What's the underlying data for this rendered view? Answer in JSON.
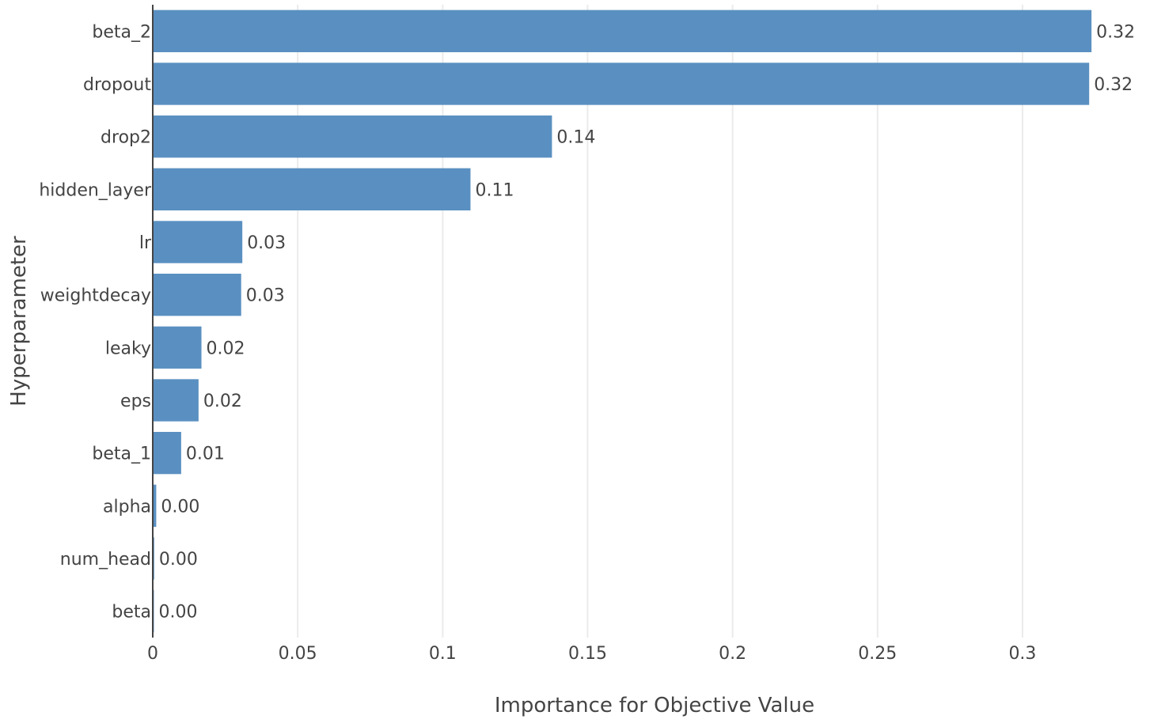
{
  "chart_data": {
    "type": "bar",
    "orientation": "horizontal",
    "xlabel": "Importance for Objective Value",
    "ylabel": "Hyperparameter",
    "xlim": [
      0,
      0.3325
    ],
    "xticks": [
      0,
      0.05,
      0.1,
      0.15,
      0.2,
      0.25,
      0.3
    ],
    "xtick_labels": [
      "0",
      "0.05",
      "0.1",
      "0.15",
      "0.2",
      "0.25",
      "0.3"
    ],
    "grid": true,
    "bar_color": "#5a90c1",
    "categories": [
      "beta_2",
      "dropout",
      "drop2",
      "hidden_layer",
      "lr",
      "weightdecay",
      "leaky",
      "eps",
      "beta_1",
      "alpha",
      "num_head",
      "beta"
    ],
    "values": [
      0.3238,
      0.323,
      0.1377,
      0.1096,
      0.0309,
      0.0305,
      0.0168,
      0.0158,
      0.0098,
      0.0012,
      0.0005,
      0.0004
    ],
    "value_labels": [
      "0.32",
      "0.32",
      "0.14",
      "0.11",
      "0.03",
      "0.03",
      "0.02",
      "0.02",
      "0.01",
      "0.00",
      "0.00",
      "0.00"
    ]
  }
}
